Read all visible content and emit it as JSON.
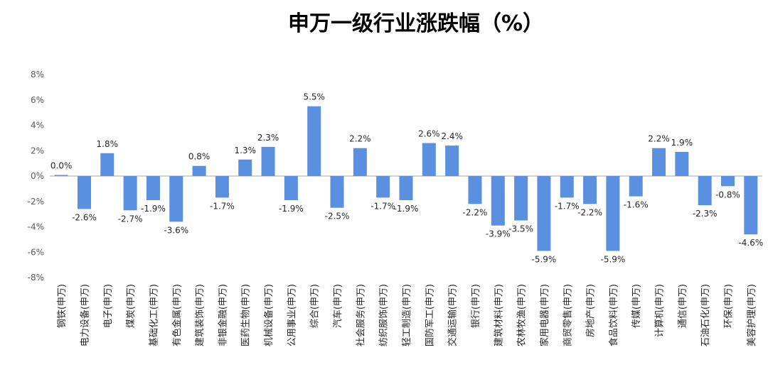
{
  "chart_data": {
    "type": "bar",
    "title": "申万一级行业涨跌幅（%）",
    "xlabel": "",
    "ylabel": "",
    "ylim": [
      -8,
      8
    ],
    "yticks": [
      8,
      6,
      4,
      2,
      0,
      -2,
      -4,
      -6,
      -8
    ],
    "ytick_labels": [
      "8%",
      "6%",
      "4%",
      "2%",
      "0%",
      "-2%",
      "-4%",
      "-6%",
      "-8%"
    ],
    "grid": false,
    "legend": false,
    "bar_color": "#5B8FDF",
    "categories": [
      "钢铁(申万)",
      "电力设备(申万)",
      "电子(申万)",
      "煤炭(申万)",
      "基础化工(申万)",
      "有色金属(申万)",
      "建筑装饰(申万)",
      "非银金融(申万)",
      "医药生物(申万)",
      "机械设备(申万)",
      "公用事业(申万)",
      "综合(申万)",
      "汽车(申万)",
      "社会服务(申万)",
      "纺织服饰(申万)",
      "轻工制造(申万)",
      "国防军工(申万)",
      "交通运输(申万)",
      "银行(申万)",
      "建筑材料(申万)",
      "农林牧渔(申万)",
      "家用电器(申万)",
      "商贸零售(申万)",
      "房地产(申万)",
      "食品饮料(申万)",
      "传媒(申万)",
      "计算机(申万)",
      "通信(申万)",
      "石油石化(申万)",
      "环保(申万)",
      "美容护理(申万)"
    ],
    "values": [
      0.05,
      -2.6,
      1.8,
      -2.7,
      -1.9,
      -3.6,
      0.8,
      -1.7,
      1.3,
      2.3,
      -1.9,
      5.5,
      -2.5,
      2.2,
      -1.7,
      -1.9,
      2.6,
      2.4,
      -2.2,
      -3.9,
      -3.5,
      -5.9,
      -1.7,
      -2.2,
      -5.9,
      -1.6,
      2.2,
      1.9,
      -2.3,
      -0.8,
      -4.6
    ],
    "data_labels": [
      "0.0%",
      "-2.6%",
      "1.8%",
      "-2.7%",
      "-1.9%",
      "-3.6%",
      "0.8%",
      "-1.7%",
      "1.3%",
      "2.3%",
      "-1.9%",
      "5.5%",
      "-2.5%",
      "2.2%",
      "-1.7%",
      "-1.9%",
      "2.6%",
      "2.4%",
      "-2.2%",
      "-3.9%",
      "-3.5%",
      "-5.9%",
      "-1.7%",
      "-2.2%",
      "-5.9%",
      "-1.6%",
      "2.2%",
      "1.9%",
      "-2.3%",
      "-0.8%",
      "-4.6%"
    ]
  }
}
